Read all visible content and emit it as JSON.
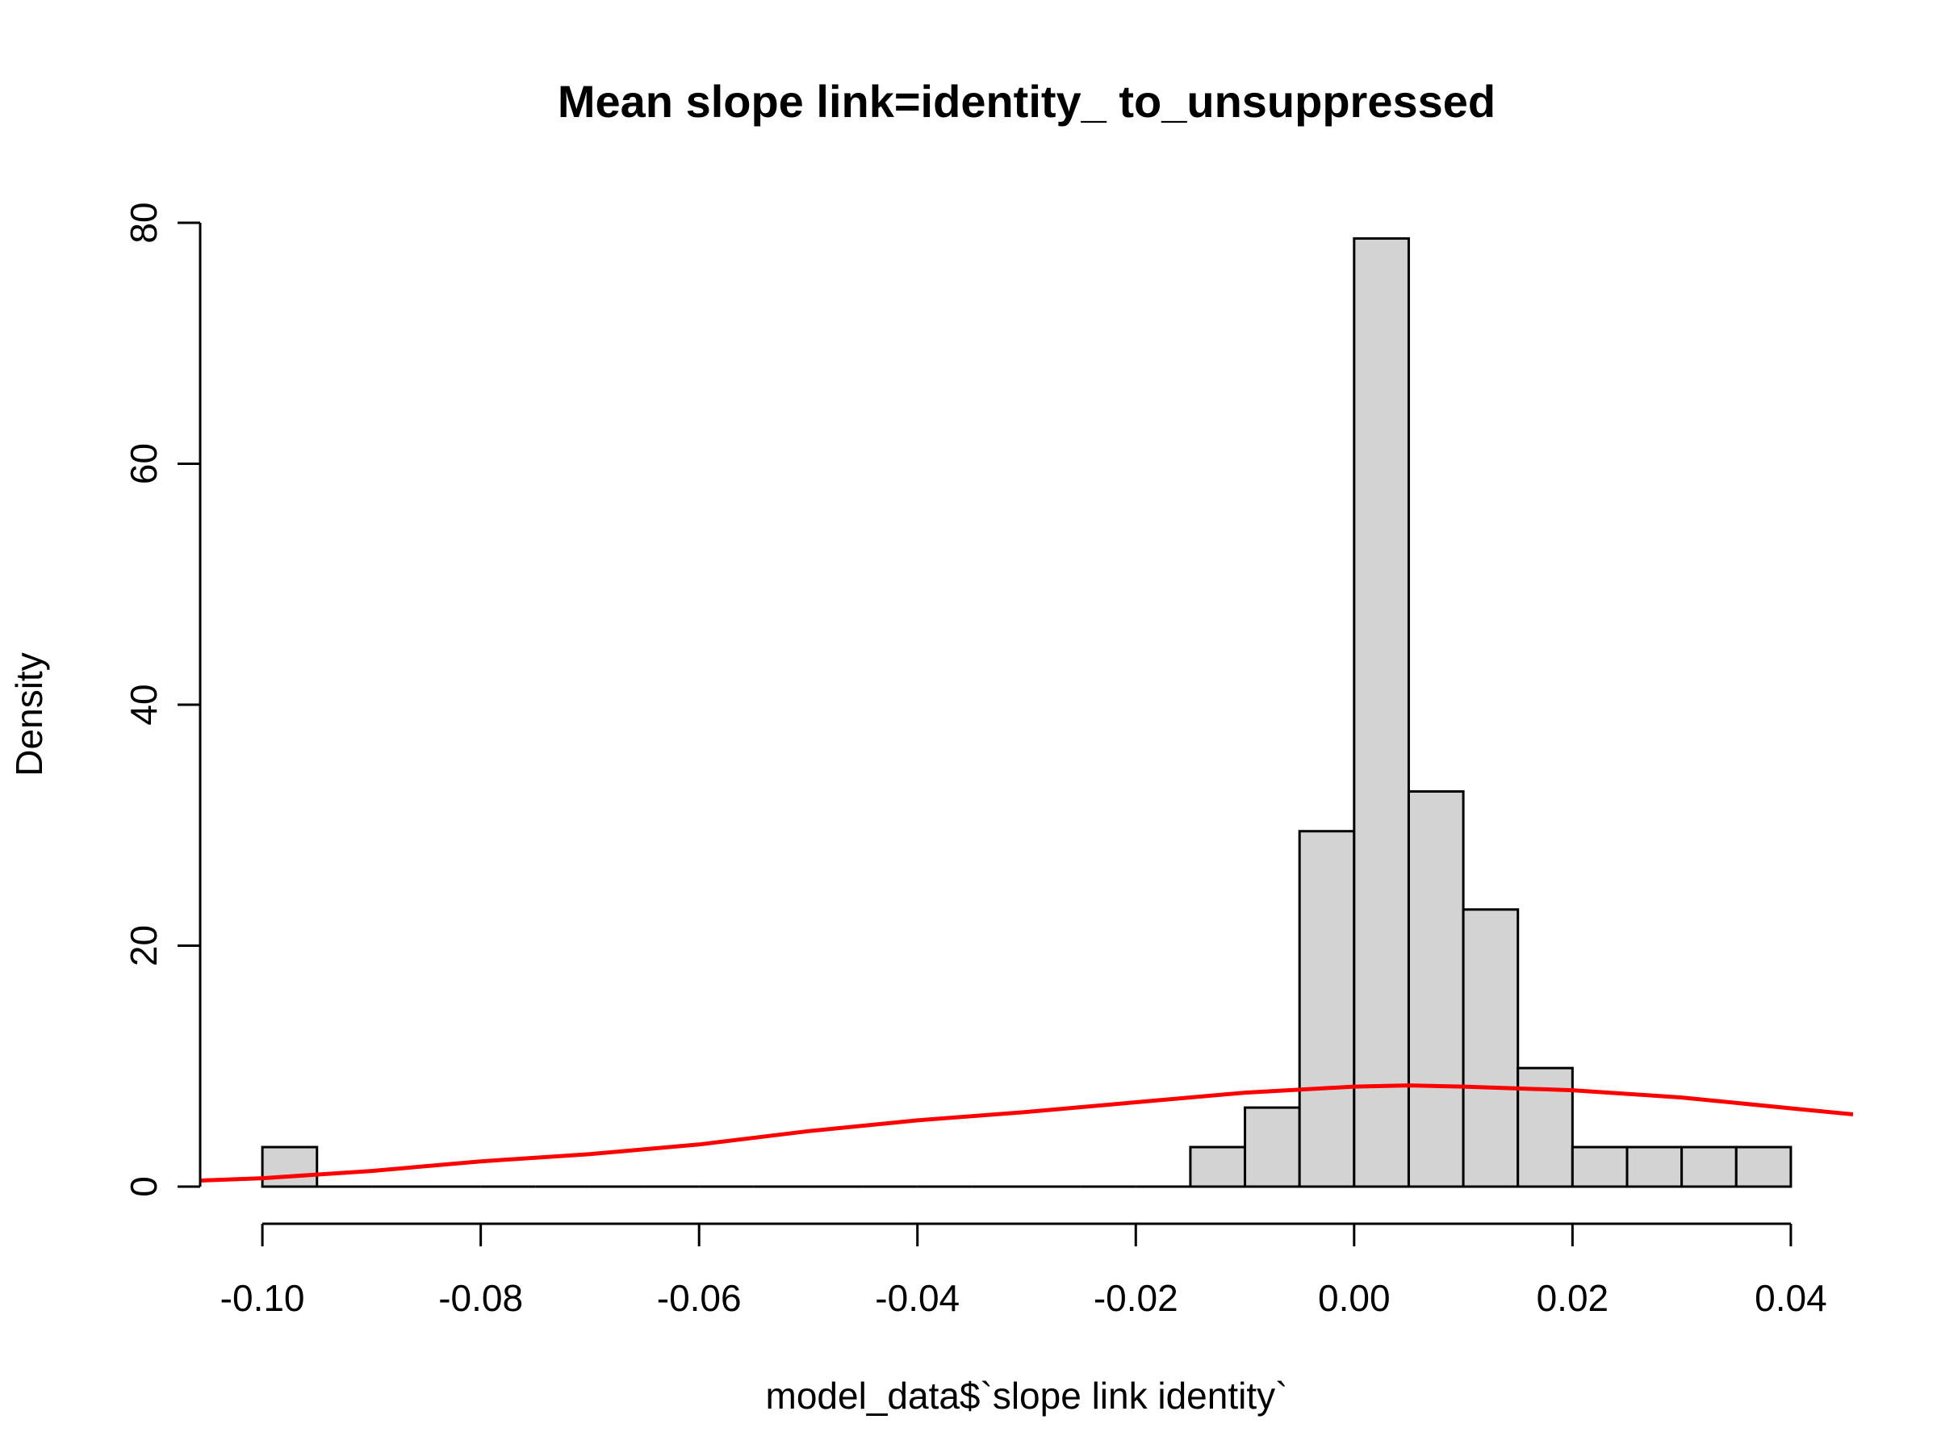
{
  "chart_data": {
    "type": "bar",
    "subtype": "histogram-with-density",
    "title": "Mean slope link=identity_ to_unsuppressed",
    "xlabel": "model_data$`slope link identity`",
    "ylabel": "Density",
    "xlim": [
      -0.1057,
      0.0457
    ],
    "ylim": [
      0,
      80
    ],
    "x_ticks": [
      -0.1,
      -0.08,
      -0.06,
      -0.04,
      -0.02,
      0.0,
      0.02,
      0.04
    ],
    "x_tick_labels": [
      "-0.10",
      "-0.08",
      "-0.06",
      "-0.04",
      "-0.02",
      "0.00",
      "0.02",
      "0.04"
    ],
    "y_ticks": [
      0,
      20,
      40,
      60,
      80
    ],
    "y_tick_labels": [
      "0",
      "20",
      "40",
      "60",
      "80"
    ],
    "bins": [
      {
        "x0": -0.1,
        "x1": -0.095,
        "density": 3.28
      },
      {
        "x0": -0.095,
        "x1": -0.09,
        "density": 0
      },
      {
        "x0": -0.09,
        "x1": -0.085,
        "density": 0
      },
      {
        "x0": -0.085,
        "x1": -0.08,
        "density": 0
      },
      {
        "x0": -0.08,
        "x1": -0.075,
        "density": 0
      },
      {
        "x0": -0.075,
        "x1": -0.07,
        "density": 0
      },
      {
        "x0": -0.07,
        "x1": -0.065,
        "density": 0
      },
      {
        "x0": -0.065,
        "x1": -0.06,
        "density": 0
      },
      {
        "x0": -0.06,
        "x1": -0.055,
        "density": 0
      },
      {
        "x0": -0.055,
        "x1": -0.05,
        "density": 0
      },
      {
        "x0": -0.05,
        "x1": -0.045,
        "density": 0
      },
      {
        "x0": -0.045,
        "x1": -0.04,
        "density": 0
      },
      {
        "x0": -0.04,
        "x1": -0.035,
        "density": 0
      },
      {
        "x0": -0.035,
        "x1": -0.03,
        "density": 0
      },
      {
        "x0": -0.03,
        "x1": -0.025,
        "density": 0
      },
      {
        "x0": -0.025,
        "x1": -0.02,
        "density": 0
      },
      {
        "x0": -0.02,
        "x1": -0.015,
        "density": 0
      },
      {
        "x0": -0.015,
        "x1": -0.01,
        "density": 3.28
      },
      {
        "x0": -0.01,
        "x1": -0.005,
        "density": 6.56
      },
      {
        "x0": -0.005,
        "x1": 0.0,
        "density": 29.5
      },
      {
        "x0": 0.0,
        "x1": 0.005,
        "density": 78.7
      },
      {
        "x0": 0.005,
        "x1": 0.01,
        "density": 32.8
      },
      {
        "x0": 0.01,
        "x1": 0.015,
        "density": 23.0
      },
      {
        "x0": 0.015,
        "x1": 0.02,
        "density": 9.84
      },
      {
        "x0": 0.02,
        "x1": 0.025,
        "density": 3.28
      },
      {
        "x0": 0.025,
        "x1": 0.03,
        "density": 3.28
      },
      {
        "x0": 0.03,
        "x1": 0.035,
        "density": 3.28
      },
      {
        "x0": 0.035,
        "x1": 0.04,
        "density": 3.28
      }
    ],
    "density_curve": {
      "color": "#ff0000",
      "x": [
        -0.1057,
        -0.1,
        -0.09,
        -0.08,
        -0.07,
        -0.06,
        -0.05,
        -0.04,
        -0.03,
        -0.02,
        -0.01,
        0.0,
        0.005,
        0.01,
        0.02,
        0.03,
        0.04,
        0.0457
      ],
      "y": [
        0.5,
        0.7,
        1.3,
        2.1,
        2.7,
        3.5,
        4.6,
        5.5,
        6.2,
        7.0,
        7.8,
        8.3,
        8.4,
        8.3,
        8.0,
        7.4,
        6.5,
        6.0
      ]
    },
    "colors": {
      "bar_fill": "#d3d3d3",
      "bar_stroke": "#000000",
      "curve": "#ff0000"
    },
    "grid": false,
    "legend": "none"
  }
}
